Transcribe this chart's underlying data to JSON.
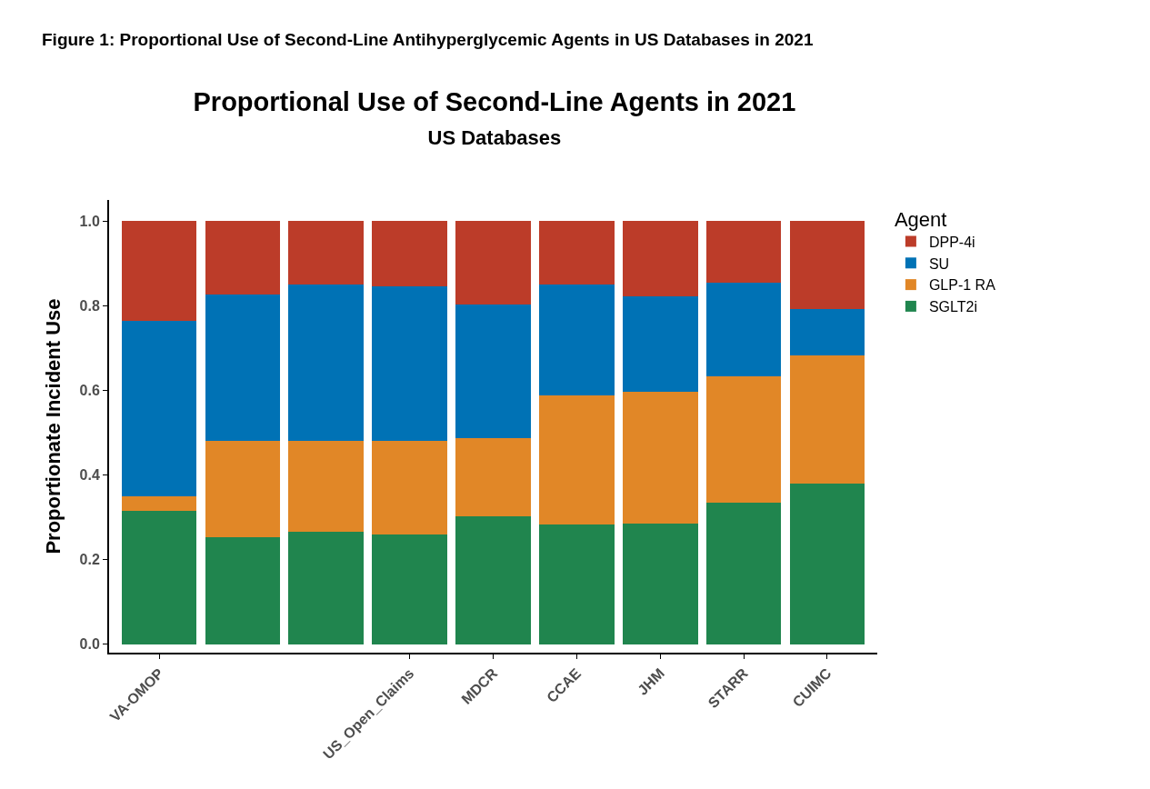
{
  "chart_data": {
    "type": "bar",
    "title": "Proportional Use of Second-Line Agents in 2021",
    "subtitle": "US Databases",
    "annotations": [
      "Figure 1: Proportional Use of Second-Line Antihyperglycemic Agents in US Databases in 2021"
    ],
    "ylabel": "Proportionate Incident Use",
    "legend_title": "Agent",
    "legend": "right",
    "stacked": true,
    "categories": [
      "VA-OMOP",
      null,
      null,
      "US_Open_Claims",
      "MDCR",
      "CCAE",
      "JHM",
      "STARR",
      "CUIMC"
    ],
    "ylim": [
      -0.02,
      1.05
    ],
    "yticks": [
      {
        "value": 0,
        "label": "0.0"
      },
      0.2,
      0.4,
      0.6,
      0.8,
      {
        "value": 1,
        "label": "1.0"
      }
    ],
    "series": [
      {
        "name": "SGLT2i",
        "color": "#20854e",
        "values": [
          0.316,
          0.252,
          0.266,
          0.259,
          0.302,
          0.283,
          0.285,
          0.335,
          0.38
        ]
      },
      {
        "name": "GLP-1 RA",
        "color": "#e18727",
        "values": [
          0.033,
          0.228,
          0.214,
          0.221,
          0.185,
          0.306,
          0.311,
          0.299,
          0.302
        ]
      },
      {
        "name": "SU",
        "color": "#0072b5",
        "values": [
          0.416,
          0.347,
          0.37,
          0.366,
          0.316,
          0.261,
          0.226,
          0.221,
          0.111
        ]
      },
      {
        "name": "DPP-4i",
        "color": "#bc3c29",
        "values": [
          0.235,
          0.173,
          0.15,
          0.154,
          0.197,
          0.15,
          0.178,
          0.145,
          0.207
        ]
      }
    ]
  }
}
